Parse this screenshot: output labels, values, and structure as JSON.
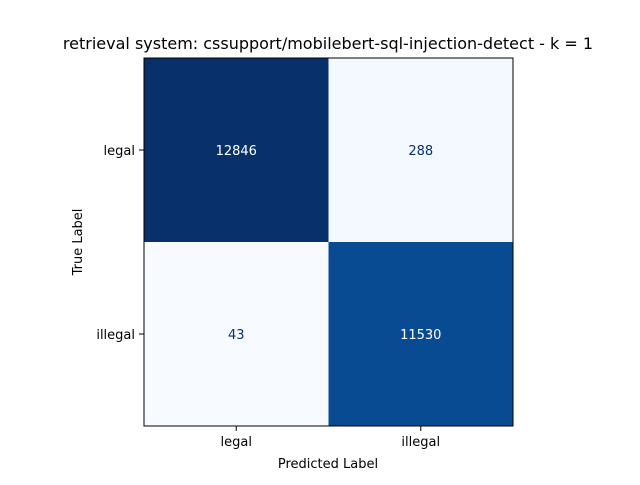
{
  "chart_data": {
    "type": "heatmap",
    "title": "retrieval system: cssupport/mobilebert-sql-injection-detect - k = 1",
    "xlabel": "Predicted Label",
    "ylabel": "True Label",
    "x_categories": [
      "legal",
      "illegal"
    ],
    "y_categories": [
      "legal",
      "illegal"
    ],
    "matrix": [
      [
        12846,
        288
      ],
      [
        43,
        11530
      ]
    ],
    "colormap": "Blues",
    "colors": {
      "low": "#f7fbff",
      "high": "#08306b",
      "dark_text": "#08306b",
      "light_text": "#ffffff"
    },
    "colorbar": false,
    "grid": false
  }
}
